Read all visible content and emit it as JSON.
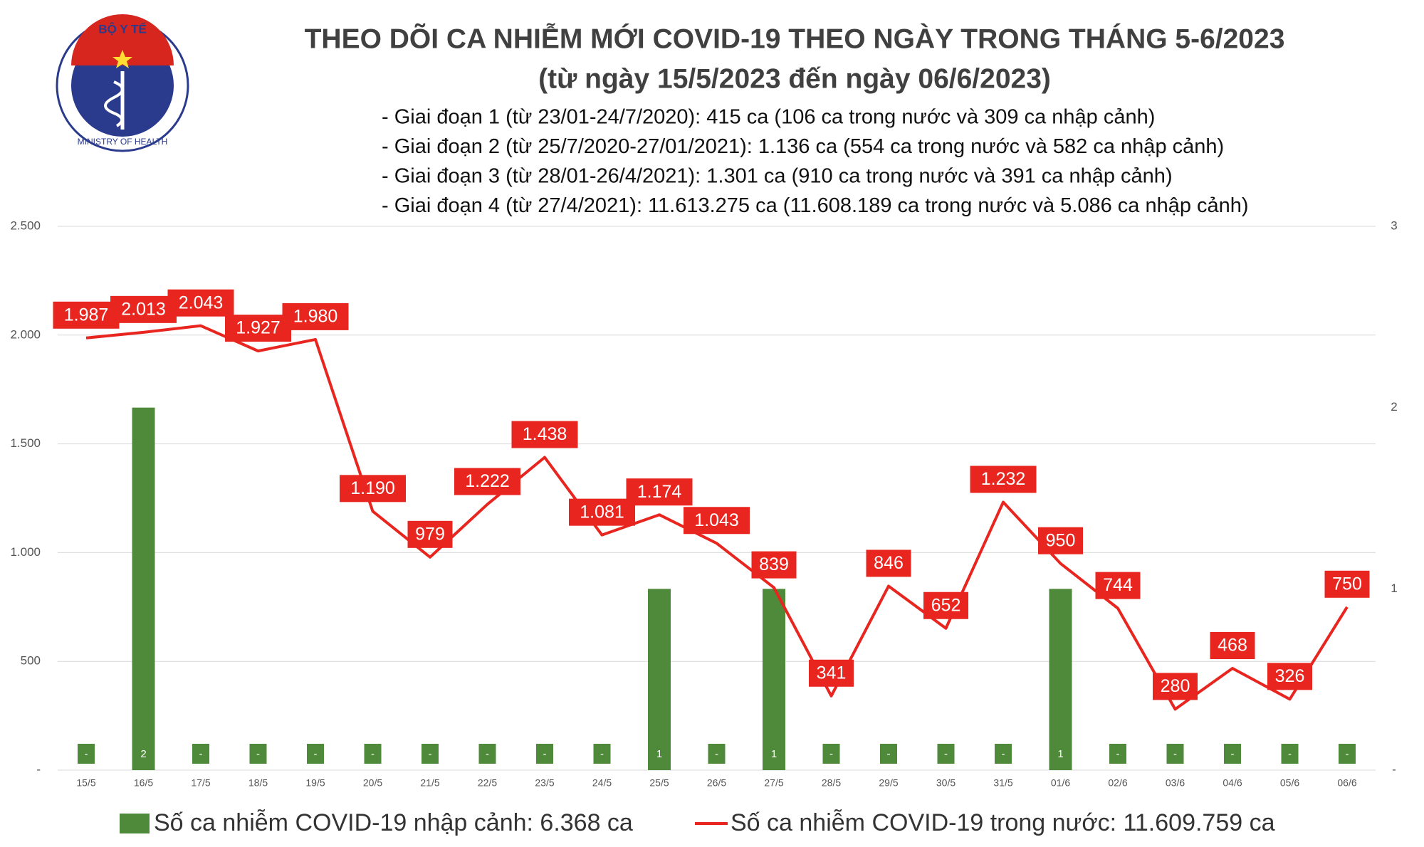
{
  "logo": [
    "BỘ Y TẾ",
    "MINISTRY OF HEALTH"
  ],
  "chart_data": {
    "type": "bar-line",
    "title": "THEO DÕI CA NHIỄM MỚI COVID-19 THEO NGÀY TRONG THÁNG 5-6/2023",
    "subtitle": "(từ ngày 15/5/2023 đến ngày 06/6/2023)",
    "annotations": [
      "- Giai đoạn 1 (từ 23/01-24/7/2020): 415 ca (106 ca trong nước và 309 ca nhập cảnh)",
      "- Giai đoạn 2 (từ 25/7/2020-27/01/2021): 1.136 ca (554 ca trong nước và 582 ca nhập cảnh)",
      "- Giai đoạn 3 (từ 28/01-26/4/2021): 1.301 ca (910 ca trong nước và 391 ca nhập cảnh)",
      "- Giai đoạn 4 (từ 27/4/2021): 11.613.275 ca (11.608.189 ca trong nước và 5.086 ca nhập cảnh)"
    ],
    "categories": [
      "15/5",
      "16/5",
      "17/5",
      "18/5",
      "19/5",
      "20/5",
      "21/5",
      "22/5",
      "23/5",
      "24/5",
      "25/5",
      "26/5",
      "27/5",
      "28/5",
      "29/5",
      "30/5",
      "31/5",
      "01/6",
      "02/6",
      "03/6",
      "04/6",
      "05/6",
      "06/6"
    ],
    "series": [
      {
        "name": "Số ca nhiễm COVID-19 nhập cảnh: 6.368 ca",
        "type": "bar",
        "axis": "y2",
        "color": "#4e8a3a",
        "values": [
          0,
          2,
          0,
          0,
          0,
          0,
          0,
          0,
          0,
          0,
          1,
          0,
          1,
          0,
          0,
          0,
          0,
          1,
          0,
          0,
          0,
          0,
          0
        ],
        "value_labels": [
          "-",
          "2",
          "-",
          "-",
          "-",
          "-",
          "-",
          "-",
          "-",
          "-",
          "1",
          "-",
          "1",
          "-",
          "-",
          "-",
          "-",
          "1",
          "-",
          "-",
          "-",
          "-",
          "-"
        ]
      },
      {
        "name": "Số ca nhiễm COVID-19 trong nước: 11.609.759 ca",
        "type": "line",
        "color": "#e8251f",
        "values": [
          1987,
          2013,
          2043,
          1927,
          1980,
          1190,
          979,
          1222,
          1438,
          1081,
          1174,
          1043,
          839,
          341,
          846,
          652,
          1232,
          950,
          744,
          280,
          468,
          326,
          750
        ],
        "value_labels": [
          "1.987",
          "2.013",
          "2.043",
          "1.927",
          "1.980",
          "1.190",
          "979",
          "1.222",
          "1.438",
          "1.081",
          "1.174",
          "1.043",
          "839",
          "341",
          "846",
          "652",
          "1.232",
          "950",
          "744",
          "280",
          "468",
          "326",
          "750"
        ]
      }
    ],
    "ylim": [
      0,
      2500
    ],
    "yticks": [
      {
        "value": 0,
        "label": "-"
      },
      500,
      {
        "value": 1000,
        "label": "1.000"
      },
      {
        "value": 1500,
        "label": "1.500"
      },
      {
        "value": 2000,
        "label": "2.000"
      },
      {
        "value": 2500,
        "label": "2.500"
      }
    ],
    "y2lim": [
      0,
      3
    ],
    "y2ticks": [
      {
        "value": 0,
        "label": "-"
      },
      1,
      2,
      3
    ],
    "grid": true
  }
}
